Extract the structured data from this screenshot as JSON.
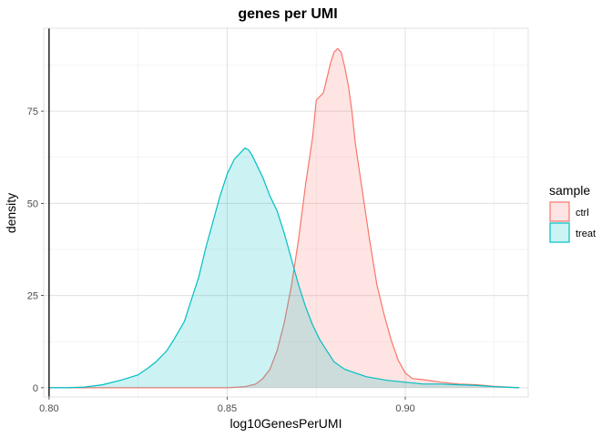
{
  "chart_data": {
    "type": "area",
    "title": "genes per UMI",
    "xlabel": "log10GenesPerUMI",
    "ylabel": "density",
    "xlim": [
      0.7985,
      0.9345
    ],
    "ylim": [
      -2.5,
      97.5
    ],
    "x_ticks": [
      0.8,
      0.85,
      0.9
    ],
    "x_tick_labels": [
      "0.80",
      "0.85",
      "0.90"
    ],
    "y_ticks": [
      0,
      25,
      50,
      75
    ],
    "y_tick_labels": [
      "0",
      "25",
      "50",
      "75"
    ],
    "grid": true,
    "vline_x": 0.8,
    "legend_title": "sample",
    "legend_position": "right",
    "series": [
      {
        "name": "ctrl",
        "color": "#F8766D",
        "fill": "#F8766D",
        "x": [
          0.8,
          0.82,
          0.84,
          0.85,
          0.855,
          0.858,
          0.86,
          0.862,
          0.864,
          0.866,
          0.868,
          0.87,
          0.872,
          0.874,
          0.875,
          0.877,
          0.878,
          0.879,
          0.88,
          0.881,
          0.882,
          0.883,
          0.884,
          0.885,
          0.886,
          0.888,
          0.89,
          0.892,
          0.894,
          0.896,
          0.898,
          0.9,
          0.902,
          0.905,
          0.91,
          0.915,
          0.92,
          0.925,
          0.932
        ],
        "y": [
          0.0,
          0.0,
          0.0,
          0.0,
          0.3,
          1.0,
          2.5,
          5.0,
          10.0,
          17.5,
          27.5,
          40.0,
          55.0,
          68.0,
          78.0,
          80.0,
          84.0,
          88.0,
          91.0,
          92.0,
          91.0,
          87.0,
          82.0,
          75.0,
          66.0,
          53.0,
          40.0,
          28.0,
          20.0,
          13.0,
          7.5,
          4.0,
          2.5,
          2.2,
          1.5,
          1.0,
          0.8,
          0.4,
          0.0
        ]
      },
      {
        "name": "treat",
        "color": "#00BFC4",
        "fill": "#00BFC4",
        "x": [
          0.8,
          0.805,
          0.81,
          0.815,
          0.82,
          0.825,
          0.828,
          0.83,
          0.833,
          0.835,
          0.838,
          0.84,
          0.842,
          0.844,
          0.846,
          0.848,
          0.85,
          0.852,
          0.854,
          0.855,
          0.856,
          0.857,
          0.858,
          0.86,
          0.862,
          0.864,
          0.866,
          0.868,
          0.87,
          0.872,
          0.874,
          0.876,
          0.878,
          0.88,
          0.883,
          0.886,
          0.889,
          0.892,
          0.895,
          0.9,
          0.905,
          0.91,
          0.915,
          0.92,
          0.925,
          0.932
        ],
        "y": [
          0.0,
          0.0,
          0.2,
          0.8,
          2.0,
          3.5,
          5.5,
          7.0,
          10.0,
          13.0,
          18.0,
          24.0,
          30.0,
          38.0,
          45.0,
          52.0,
          58.0,
          62.0,
          64.0,
          65.0,
          64.5,
          63.0,
          61.0,
          57.0,
          52.0,
          48.0,
          42.0,
          35.0,
          28.0,
          22.0,
          17.0,
          13.0,
          10.0,
          7.0,
          5.0,
          4.0,
          3.0,
          2.5,
          2.0,
          1.5,
          1.0,
          1.0,
          0.8,
          0.6,
          0.3,
          0.0
        ]
      }
    ]
  }
}
